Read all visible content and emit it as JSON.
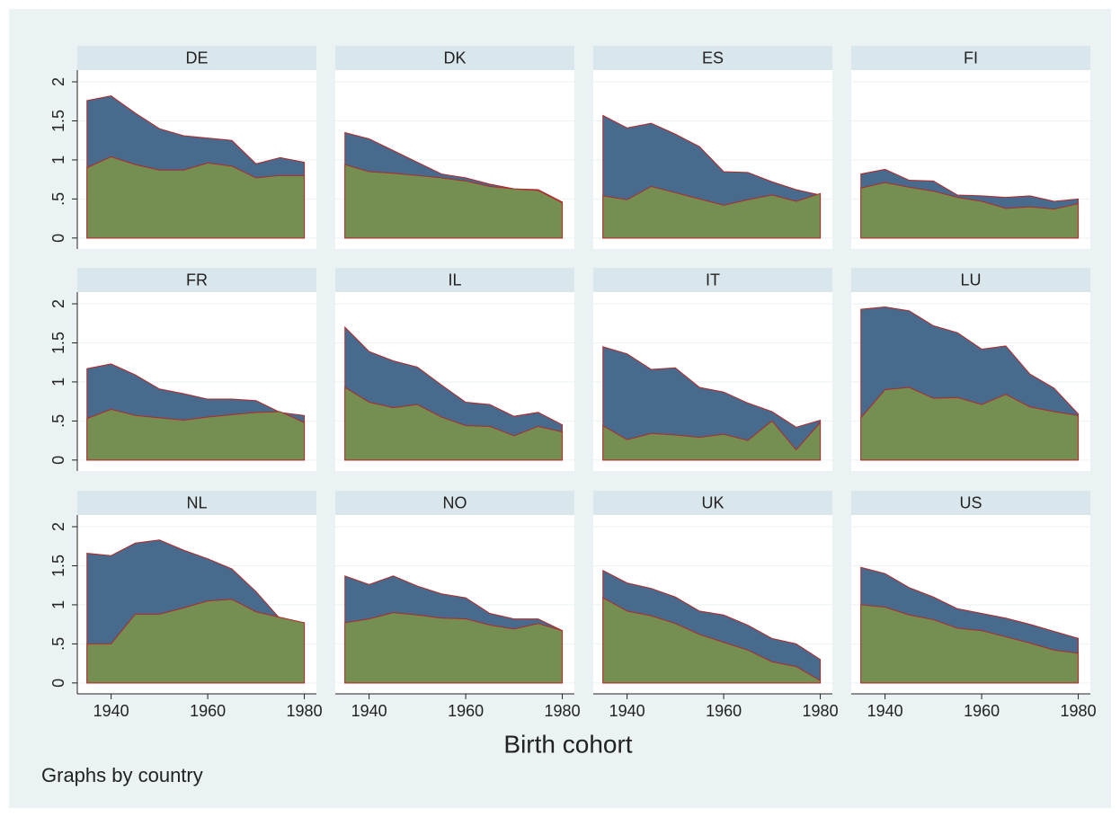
{
  "xlabel": "Birth cohort",
  "note": "Graphs by country",
  "x": [
    1935,
    1940,
    1945,
    1950,
    1955,
    1960,
    1965,
    1970,
    1975,
    1980
  ],
  "xlim": [
    1933,
    1982.5
  ],
  "xticks": [
    1940,
    1960,
    1980
  ],
  "ylim": [
    -0.14,
    2.15
  ],
  "yticks": [
    0,
    {
      "value": 0.5,
      "label": ".5"
    },
    1,
    1.5,
    2
  ],
  "grid": true,
  "chart_data": [
    {
      "type": "area",
      "title": "DE",
      "series": [
        {
          "color": "#486a8c",
          "values": [
            1.76,
            1.82,
            1.6,
            1.4,
            1.31,
            1.28,
            1.25,
            0.95,
            1.03,
            0.97
          ]
        },
        {
          "color": "#758f53",
          "values": [
            0.9,
            1.04,
            0.94,
            0.87,
            0.87,
            0.96,
            0.92,
            0.77,
            0.8,
            0.8
          ]
        }
      ]
    },
    {
      "type": "area",
      "title": "DK",
      "series": [
        {
          "color": "#486a8c",
          "values": [
            1.35,
            1.27,
            1.12,
            0.97,
            0.82,
            0.77,
            0.69,
            0.63,
            0.62,
            0.46
          ]
        },
        {
          "color": "#758f53",
          "values": [
            0.94,
            0.85,
            0.83,
            0.8,
            0.77,
            0.73,
            0.66,
            0.63,
            0.61,
            0.45
          ]
        }
      ]
    },
    {
      "type": "area",
      "title": "ES",
      "series": [
        {
          "color": "#486a8c",
          "values": [
            1.57,
            1.41,
            1.47,
            1.33,
            1.17,
            0.85,
            0.84,
            0.72,
            0.62,
            0.55
          ]
        },
        {
          "color": "#758f53",
          "values": [
            0.54,
            0.49,
            0.66,
            0.58,
            0.5,
            0.42,
            0.49,
            0.55,
            0.47,
            0.57
          ]
        }
      ]
    },
    {
      "type": "area",
      "title": "FI",
      "series": [
        {
          "color": "#486a8c",
          "values": [
            0.82,
            0.88,
            0.74,
            0.73,
            0.55,
            0.54,
            0.52,
            0.54,
            0.47,
            0.5
          ]
        },
        {
          "color": "#758f53",
          "values": [
            0.64,
            0.71,
            0.65,
            0.6,
            0.52,
            0.47,
            0.38,
            0.4,
            0.37,
            0.44
          ]
        }
      ]
    },
    {
      "type": "area",
      "title": "FR",
      "series": [
        {
          "color": "#486a8c",
          "values": [
            1.17,
            1.23,
            1.09,
            0.91,
            0.85,
            0.78,
            0.78,
            0.76,
            0.61,
            0.57
          ]
        },
        {
          "color": "#758f53",
          "values": [
            0.53,
            0.65,
            0.57,
            0.54,
            0.51,
            0.55,
            0.58,
            0.61,
            0.62,
            0.48
          ]
        }
      ]
    },
    {
      "type": "area",
      "title": "IL",
      "series": [
        {
          "color": "#486a8c",
          "values": [
            1.7,
            1.39,
            1.27,
            1.19,
            0.96,
            0.74,
            0.71,
            0.56,
            0.61,
            0.45
          ]
        },
        {
          "color": "#758f53",
          "values": [
            0.93,
            0.74,
            0.67,
            0.71,
            0.55,
            0.44,
            0.43,
            0.31,
            0.43,
            0.36
          ]
        }
      ]
    },
    {
      "type": "area",
      "title": "IT",
      "series": [
        {
          "color": "#486a8c",
          "values": [
            1.45,
            1.36,
            1.16,
            1.18,
            0.93,
            0.87,
            0.73,
            0.62,
            0.42,
            0.51
          ]
        },
        {
          "color": "#758f53",
          "values": [
            0.44,
            0.26,
            0.34,
            0.32,
            0.29,
            0.33,
            0.25,
            0.5,
            0.13,
            0.48
          ]
        }
      ]
    },
    {
      "type": "area",
      "title": "LU",
      "series": [
        {
          "color": "#486a8c",
          "values": [
            1.93,
            1.96,
            1.91,
            1.72,
            1.63,
            1.42,
            1.46,
            1.1,
            0.92,
            0.59
          ]
        },
        {
          "color": "#758f53",
          "values": [
            0.54,
            0.9,
            0.93,
            0.79,
            0.8,
            0.71,
            0.84,
            0.68,
            0.62,
            0.57
          ]
        }
      ]
    },
    {
      "type": "area",
      "title": "NL",
      "series": [
        {
          "color": "#486a8c",
          "values": [
            1.66,
            1.63,
            1.79,
            1.83,
            1.7,
            1.59,
            1.46,
            1.17,
            0.82,
            0.77
          ]
        },
        {
          "color": "#758f53",
          "values": [
            0.5,
            0.5,
            0.88,
            0.88,
            0.96,
            1.05,
            1.07,
            0.91,
            0.84,
            0.77
          ]
        }
      ]
    },
    {
      "type": "area",
      "title": "NO",
      "series": [
        {
          "color": "#486a8c",
          "values": [
            1.37,
            1.26,
            1.37,
            1.24,
            1.14,
            1.09,
            0.89,
            0.82,
            0.82,
            0.67
          ]
        },
        {
          "color": "#758f53",
          "values": [
            0.77,
            0.82,
            0.9,
            0.87,
            0.83,
            0.82,
            0.74,
            0.69,
            0.76,
            0.67
          ]
        }
      ]
    },
    {
      "type": "area",
      "title": "UK",
      "series": [
        {
          "color": "#486a8c",
          "values": [
            1.44,
            1.28,
            1.21,
            1.1,
            0.92,
            0.87,
            0.74,
            0.57,
            0.5,
            0.3
          ]
        },
        {
          "color": "#758f53",
          "values": [
            1.09,
            0.92,
            0.86,
            0.76,
            0.62,
            0.52,
            0.42,
            0.27,
            0.21,
            0.03
          ]
        }
      ]
    },
    {
      "type": "area",
      "title": "US",
      "series": [
        {
          "color": "#486a8c",
          "values": [
            1.48,
            1.4,
            1.22,
            1.1,
            0.95,
            0.89,
            0.83,
            0.75,
            0.66,
            0.57
          ]
        },
        {
          "color": "#758f53",
          "values": [
            1.0,
            0.97,
            0.87,
            0.81,
            0.7,
            0.67,
            0.59,
            0.51,
            0.42,
            0.38
          ]
        }
      ]
    }
  ]
}
